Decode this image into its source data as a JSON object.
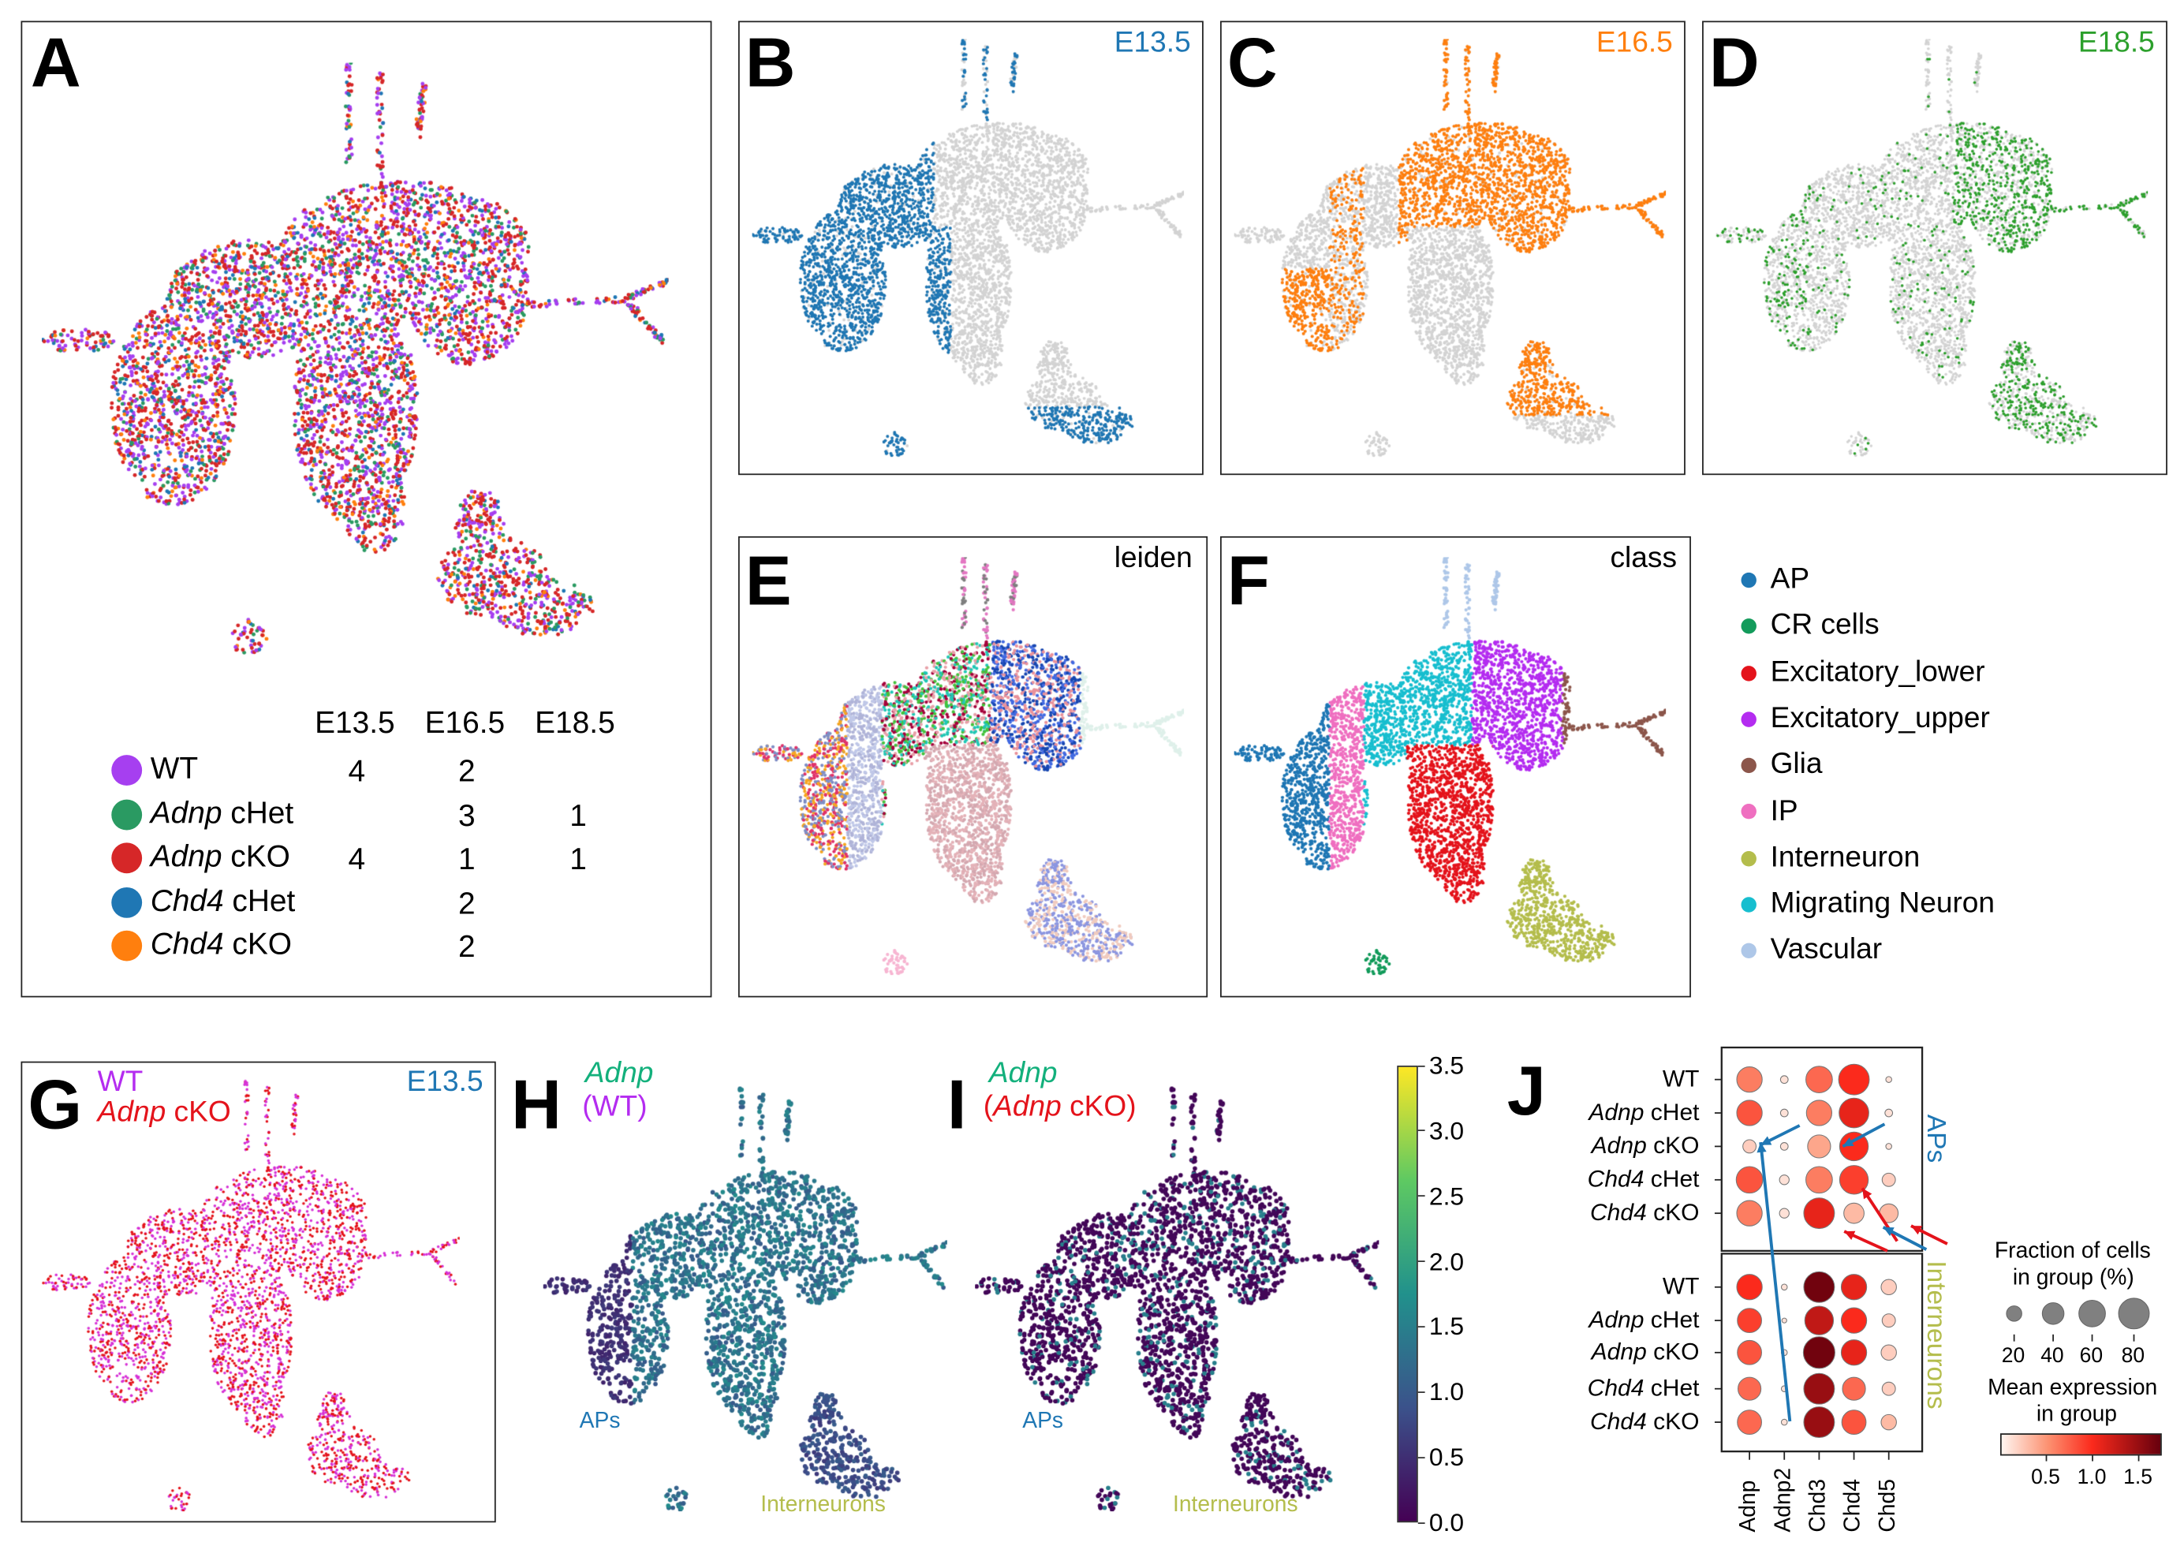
{
  "panels": {
    "A": {
      "letter": "A"
    },
    "B": {
      "letter": "B",
      "title": "E13.5",
      "color": "#1f77b4"
    },
    "C": {
      "letter": "C",
      "title": "E16.5",
      "color": "#ff7f0e"
    },
    "D": {
      "letter": "D",
      "title": "E18.5",
      "color": "#2ca02c"
    },
    "E": {
      "letter": "E",
      "title": "leiden"
    },
    "F": {
      "letter": "F",
      "title": "class"
    },
    "G": {
      "letter": "G",
      "title_line1": "WT",
      "title_line2_gene": "Adnp",
      "title_line2_rest": " cKO",
      "stage": "E13.5"
    },
    "H": {
      "letter": "H",
      "gene": "Adnp",
      "group": "(WT)",
      "label_aps": "APs",
      "label_interneurons": "Interneurons"
    },
    "I": {
      "letter": "I",
      "gene": "Adnp",
      "group_open": "(",
      "group_gene": "Adnp",
      "group_rest": " cKO)",
      "label_aps": "APs",
      "label_interneurons": "Interneurons"
    },
    "J": {
      "letter": "J"
    }
  },
  "sample_table": {
    "columns": [
      "E13.5",
      "E16.5",
      "E18.5"
    ],
    "rows": [
      {
        "gene": "",
        "label": "WT",
        "color": "#a63ff0",
        "counts": [
          "4",
          "2",
          ""
        ]
      },
      {
        "gene": "Adnp",
        "label": " cHet",
        "color": "#2a9a62",
        "counts": [
          "",
          "3",
          "1"
        ]
      },
      {
        "gene": "Adnp",
        "label": " cKO",
        "color": "#d62728",
        "counts": [
          "4",
          "1",
          "1"
        ]
      },
      {
        "gene": "Chd4",
        "label": " cHet",
        "color": "#1f77b4",
        "counts": [
          "",
          "2",
          ""
        ]
      },
      {
        "gene": "Chd4",
        "label": " cKO",
        "color": "#ff7f0e",
        "counts": [
          "",
          "2",
          ""
        ]
      }
    ]
  },
  "class_legend": [
    {
      "label": "AP",
      "color": "#1f77b4"
    },
    {
      "label": "CR cells",
      "color": "#139b5b"
    },
    {
      "label": "Excitatory_lower",
      "color": "#e4131b"
    },
    {
      "label": "Excitatory_upper",
      "color": "#b42cf0"
    },
    {
      "label": "Glia",
      "color": "#8c564b"
    },
    {
      "label": "IP",
      "color": "#ef6fc0"
    },
    {
      "label": "Interneuron",
      "color": "#b4bd4c"
    },
    {
      "label": "Migrating Neuron",
      "color": "#17becf"
    },
    {
      "label": "Vascular",
      "color": "#aec7e8"
    }
  ],
  "chart_data": [
    {
      "type": "heatmap",
      "subtype": "colorbar",
      "colormap": "viridis",
      "ylim": [
        0.0,
        3.5
      ],
      "tick_labels": [
        "0.0",
        "0.5",
        "1.0",
        "1.5",
        "2.0",
        "2.5",
        "3.0",
        "3.5"
      ]
    },
    {
      "type": "scatter",
      "subtype": "dotplot",
      "categories": [
        "Adnp",
        "Adnp2",
        "Chd3",
        "Chd4",
        "Chd5"
      ],
      "group_labels": [
        {
          "gene": "",
          "rest": "WT"
        },
        {
          "gene": "Adnp",
          "rest": " cHet"
        },
        {
          "gene": "Adnp",
          "rest": " cKO"
        },
        {
          "gene": "Chd4",
          "rest": " cHet"
        },
        {
          "gene": "Chd4",
          "rest": " cKO"
        }
      ],
      "blocks": [
        {
          "name": "APs",
          "color": "#1f77b4",
          "fraction": [
            [
              55,
              5,
              60,
              80,
              3
            ],
            [
              55,
              5,
              55,
              75,
              5
            ],
            [
              15,
              5,
              45,
              70,
              3
            ],
            [
              60,
              8,
              60,
              70,
              15
            ],
            [
              55,
              8,
              80,
              35,
              30
            ]
          ],
          "expression": [
            [
              0.6,
              0.1,
              0.7,
              1.0,
              0.1
            ],
            [
              0.8,
              0.1,
              0.6,
              1.1,
              0.1
            ],
            [
              0.2,
              0.1,
              0.4,
              1.0,
              0.1
            ],
            [
              0.8,
              0.1,
              0.6,
              0.9,
              0.2
            ],
            [
              0.6,
              0.1,
              1.1,
              0.3,
              0.3
            ]
          ]
        },
        {
          "name": "Interneurons",
          "color": "#b4bd4c",
          "fraction": [
            [
              55,
              3,
              80,
              55,
              20
            ],
            [
              50,
              2,
              70,
              55,
              15
            ],
            [
              50,
              3,
              85,
              55,
              20
            ],
            [
              45,
              3,
              80,
              45,
              15
            ],
            [
              50,
              3,
              80,
              50,
              20
            ]
          ],
          "expression": [
            [
              1.0,
              0.1,
              1.7,
              1.1,
              0.2
            ],
            [
              0.9,
              0.1,
              1.3,
              1.0,
              0.2
            ],
            [
              0.8,
              0.1,
              1.7,
              1.1,
              0.2
            ],
            [
              0.7,
              0.1,
              1.5,
              0.7,
              0.2
            ],
            [
              0.7,
              0.1,
              1.5,
              0.8,
              0.3
            ]
          ]
        }
      ],
      "size_legend": {
        "title_line1": "Fraction of cells",
        "title_line2": "in group (%)",
        "values": [
          "20",
          "40",
          "60",
          "80"
        ]
      },
      "color_legend": {
        "title_line1": "Mean expression",
        "title_line2": "in group",
        "colormap": "Reds",
        "range": [
          0,
          1.75
        ],
        "tick_labels": [
          "0.5",
          "1.0",
          "1.5"
        ]
      }
    }
  ]
}
